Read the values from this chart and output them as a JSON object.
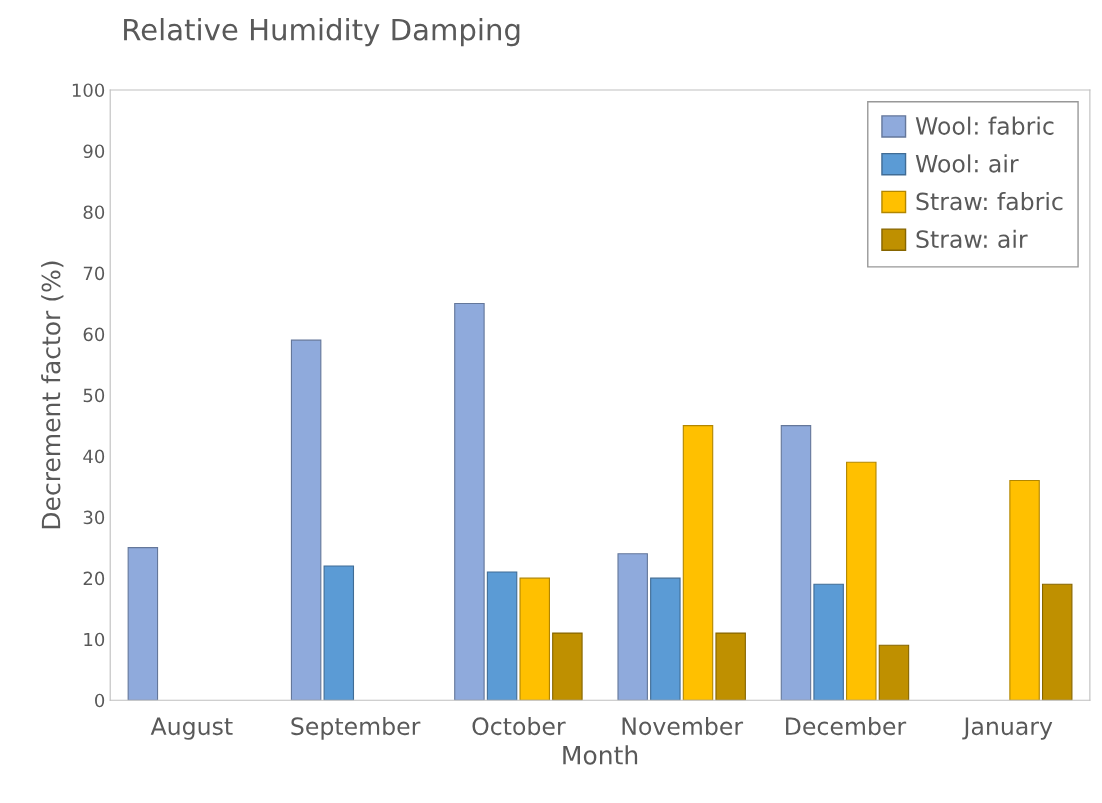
{
  "chart_data": {
    "type": "bar",
    "title": "Relative Humidity Damping",
    "xlabel": "Month",
    "ylabel": "Decrement factor (%)",
    "categories": [
      "August",
      "September",
      "October",
      "November",
      "December",
      "January"
    ],
    "series": [
      {
        "name": "Wool: fabric",
        "color": "#8faadc",
        "values": [
          25,
          59,
          65,
          24,
          45,
          null
        ]
      },
      {
        "name": "Wool: air",
        "color": "#5b9bd5",
        "values": [
          null,
          22,
          21,
          20,
          19,
          null
        ]
      },
      {
        "name": "Straw: fabric",
        "color": "#ffc000",
        "values": [
          null,
          null,
          20,
          45,
          39,
          36
        ]
      },
      {
        "name": "Straw: air",
        "color": "#bf9000",
        "values": [
          null,
          null,
          11,
          11,
          9,
          19
        ]
      }
    ],
    "ylim": [
      0,
      100
    ],
    "yticks": [
      0,
      10,
      20,
      30,
      40,
      50,
      60,
      70,
      80,
      90,
      100
    ],
    "grid": false,
    "legend": "top right"
  }
}
